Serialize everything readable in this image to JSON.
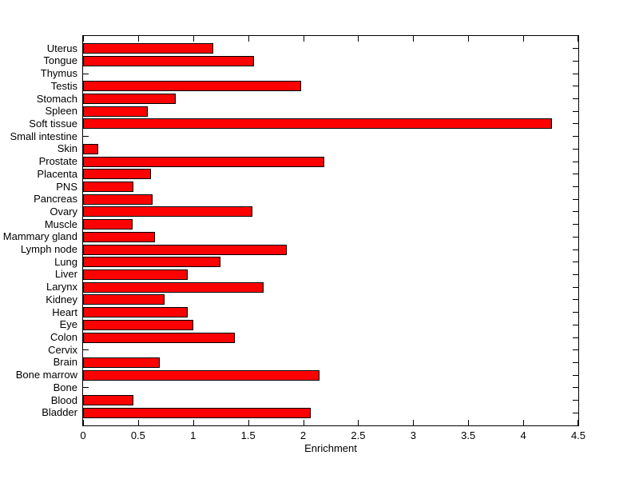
{
  "figure": {
    "background_color": "#ffffff",
    "axis_line_color": "#000000"
  },
  "chart_data": {
    "type": "bar",
    "orientation": "horizontal",
    "title": "",
    "xlabel": "Enrichment",
    "ylabel": "",
    "xlim": [
      0,
      4.5
    ],
    "x_ticks": [
      0,
      0.5,
      1,
      1.5,
      2,
      2.5,
      3,
      3.5,
      4,
      4.5
    ],
    "x_tick_labels": [
      "0",
      "0.5",
      "1",
      "1.5",
      "2",
      "2.5",
      "3",
      "3.5",
      "4",
      "4.5"
    ],
    "grid": false,
    "legend": null,
    "bar_fill_color": "#ff0000",
    "bar_edge_color": "#000000",
    "categories_top_to_bottom": [
      "Uterus",
      "Tongue",
      "Thymus",
      "Testis",
      "Stomach",
      "Spleen",
      "Soft tissue",
      "Small intestine",
      "Skin",
      "Prostate",
      "Placenta",
      "PNS",
      "Pancreas",
      "Ovary",
      "Muscle",
      "Mammary gland",
      "Lymph node",
      "Lung",
      "Liver",
      "Larynx",
      "Kidney",
      "Heart",
      "Eye",
      "Colon",
      "Cervix",
      "Brain",
      "Bone marrow",
      "Bone",
      "Blood",
      "Bladder"
    ],
    "values_top_to_bottom": [
      1.18,
      1.55,
      0,
      1.98,
      0.84,
      0.59,
      4.26,
      0,
      0.14,
      2.19,
      0.62,
      0.46,
      0.63,
      1.54,
      0.45,
      0.65,
      1.85,
      1.25,
      0.95,
      1.64,
      0.74,
      0.95,
      1.0,
      1.38,
      0,
      0.7,
      2.15,
      0,
      0.46,
      2.07
    ]
  }
}
